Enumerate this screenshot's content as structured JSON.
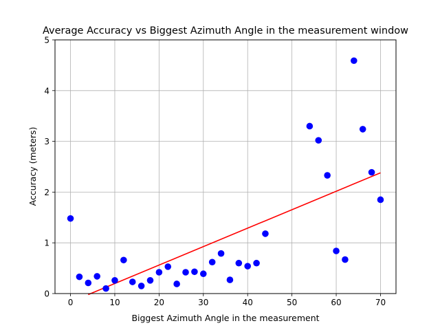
{
  "chart_data": {
    "type": "scatter",
    "title": "Average Accuracy vs Biggest Azimuth Angle in the measurement window",
    "xlabel": "Biggest Azimuth Angle in the measurement",
    "ylabel": "Accuracy (meters)",
    "xlim": [
      -3.5,
      73.5
    ],
    "ylim": [
      0,
      5
    ],
    "xticks": [
      0,
      10,
      20,
      30,
      40,
      50,
      60,
      70
    ],
    "yticks": [
      0,
      1,
      2,
      3,
      4,
      5
    ],
    "grid": true,
    "point_color": "#0000ff",
    "line_color": "#ff0000",
    "points": [
      {
        "x": 0,
        "y": 1.48
      },
      {
        "x": 2,
        "y": 0.33
      },
      {
        "x": 4,
        "y": 0.21
      },
      {
        "x": 6,
        "y": 0.34
      },
      {
        "x": 8,
        "y": 0.1
      },
      {
        "x": 10,
        "y": 0.26
      },
      {
        "x": 12,
        "y": 0.66
      },
      {
        "x": 14,
        "y": 0.23
      },
      {
        "x": 16,
        "y": 0.15
      },
      {
        "x": 18,
        "y": 0.26
      },
      {
        "x": 20,
        "y": 0.42
      },
      {
        "x": 22,
        "y": 0.53
      },
      {
        "x": 24,
        "y": 0.19
      },
      {
        "x": 26,
        "y": 0.42
      },
      {
        "x": 28,
        "y": 0.43
      },
      {
        "x": 30,
        "y": 0.39
      },
      {
        "x": 32,
        "y": 0.62
      },
      {
        "x": 34,
        "y": 0.79
      },
      {
        "x": 36,
        "y": 0.27
      },
      {
        "x": 38,
        "y": 0.6
      },
      {
        "x": 40,
        "y": 0.54
      },
      {
        "x": 42,
        "y": 0.6
      },
      {
        "x": 44,
        "y": 1.18
      },
      {
        "x": 54,
        "y": 3.3
      },
      {
        "x": 56,
        "y": 3.02
      },
      {
        "x": 58,
        "y": 2.33
      },
      {
        "x": 60,
        "y": 0.84
      },
      {
        "x": 62,
        "y": 0.67
      },
      {
        "x": 64,
        "y": 4.59
      },
      {
        "x": 66,
        "y": 3.24
      },
      {
        "x": 68,
        "y": 2.39
      },
      {
        "x": 70,
        "y": 1.85
      }
    ],
    "trend_line": {
      "x": [
        4,
        70
      ],
      "y": [
        -0.02,
        2.38
      ]
    }
  }
}
